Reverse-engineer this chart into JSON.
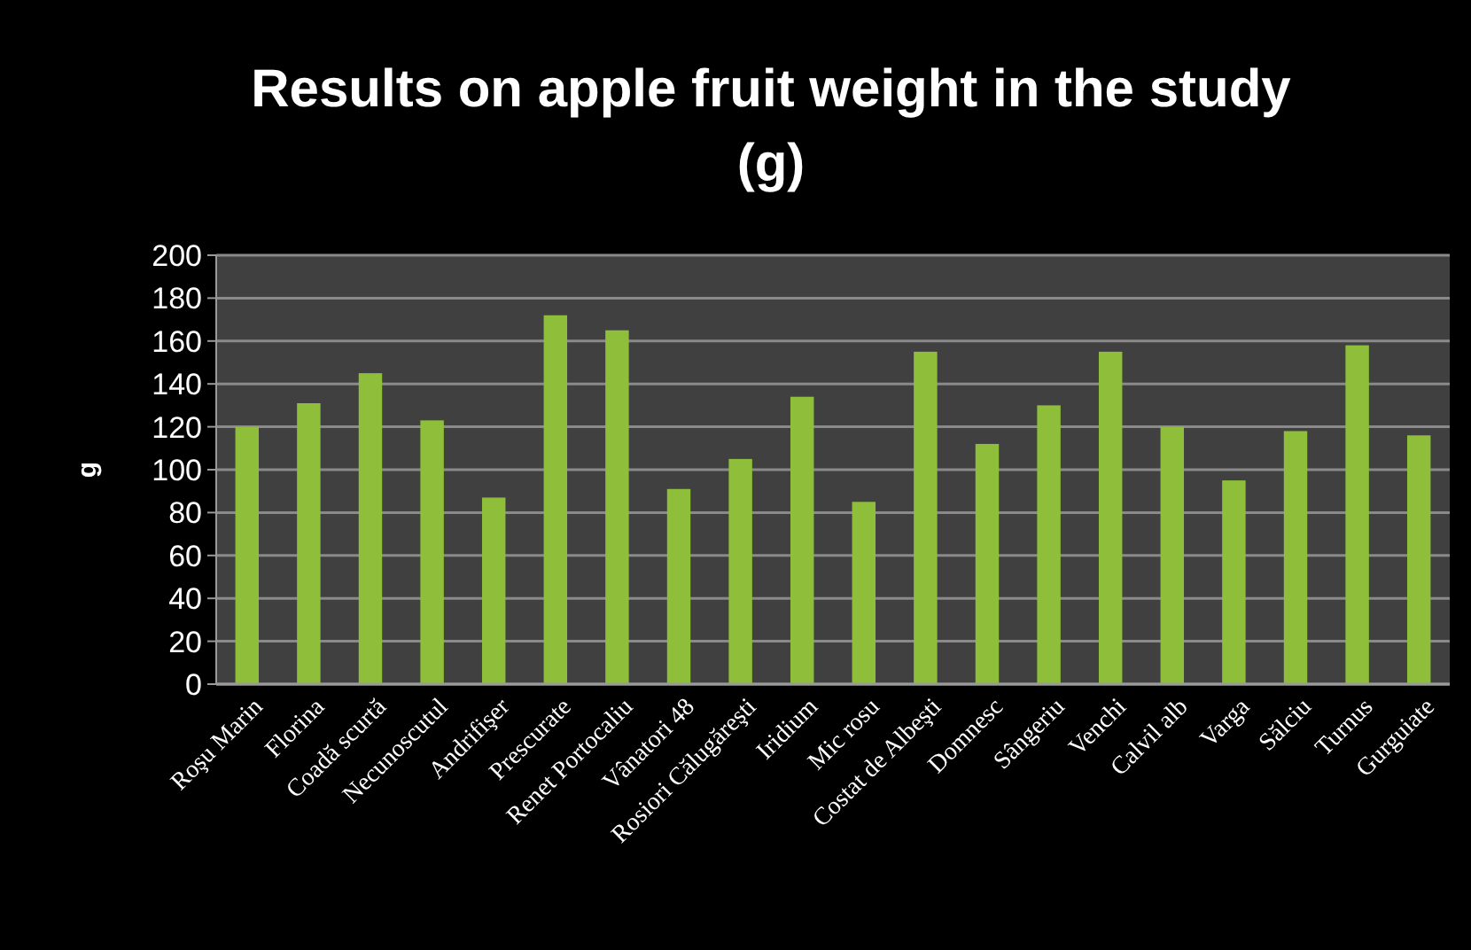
{
  "chart_data": {
    "type": "bar",
    "title": "Results on apple fruit weight in the study (g)",
    "ylabel": "g",
    "categories": [
      "Roşu Marin",
      "Florina",
      "Coadă scurtă",
      "Necunoscutul",
      "Andrifişer",
      "Prescurate",
      "Renet Portocaliu",
      "Vânatori 48",
      "Rosiori Călugăreşti",
      "Iridium",
      "Mic rosu",
      "Costat de Albeşti",
      "Domnesc",
      "Sângeriu",
      "Venchi",
      "Calvil alb",
      "Varga",
      "Sălciu",
      "Turnus",
      "Gurguiate"
    ],
    "values": [
      120,
      131,
      145,
      123,
      87,
      172,
      165,
      91,
      105,
      134,
      85,
      155,
      112,
      130,
      155,
      120,
      95,
      118,
      158,
      116
    ],
    "color": "#8fbf3a",
    "ylim": [
      0,
      200
    ],
    "yticks": [
      0,
      20,
      40,
      60,
      80,
      100,
      120,
      140,
      160,
      180,
      200
    ],
    "grid": "y"
  }
}
